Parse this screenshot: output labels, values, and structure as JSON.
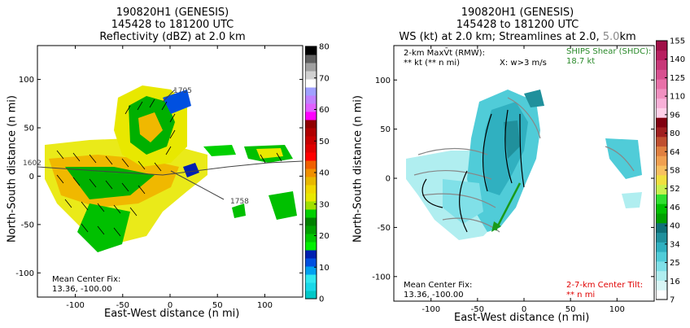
{
  "left": {
    "title_lines": [
      "190820H1 (GENESIS)",
      "145428 to 181200 UTC",
      "Reflectivity (dBZ) at 2.0 km"
    ],
    "xlabel": "East-West distance (n mi)",
    "ylabel": "North-South distance (n mi)",
    "mean_fix_label": "Mean Center Fix:",
    "mean_fix_value": "13.36, -100.00",
    "track_times": [
      "1602",
      "1758",
      "1705"
    ],
    "colorbar": {
      "ticks": [
        "80",
        "70",
        "60",
        "50",
        "40",
        "30",
        "20",
        "10",
        "0"
      ],
      "colors": [
        "#00c8c8",
        "#18d8e8",
        "#30e8f0",
        "#00a0f0",
        "#0050e0",
        "#0020b0",
        "#00f000",
        "#00c800",
        "#00a000",
        "#008000",
        "#00d000",
        "#a0e000",
        "#e8e800",
        "#f0d800",
        "#e8b800",
        "#f09000",
        "#f06000",
        "#ff0000",
        "#e00000",
        "#c80000",
        "#b00000",
        "#900000",
        "#ff00ff",
        "#e060ff",
        "#c080ff",
        "#a0a0ff",
        "#ffffff",
        "#d0d0d0",
        "#a0a0a0",
        "#606060",
        "#000000"
      ]
    },
    "chart_data": {
      "type": "heatmap",
      "field": "Reflectivity (dBZ) at 2.0 km",
      "xlabel": "East-West distance (n mi)",
      "ylabel": "North-South distance (n mi)",
      "xlim": [
        -140,
        140
      ],
      "ylim": [
        -125,
        135
      ],
      "xticks": [
        -100,
        -50,
        0,
        50,
        100
      ],
      "yticks": [
        -100,
        -50,
        0,
        50,
        100
      ],
      "colorbar_range": [
        0,
        80
      ],
      "colorbar_ticks": [
        0,
        10,
        20,
        30,
        40,
        50,
        60,
        70,
        80
      ],
      "track_labels": [
        "1602",
        "1705",
        "1758"
      ]
    }
  },
  "right": {
    "title_lines": [
      "190820H1 (GENESIS)",
      "145428 to 181200 UTC"
    ],
    "title3_a": "WS (kt) at 2.0 km; Streamlines at 2.0, ",
    "title3_b": "5.0",
    "title3_c": "km",
    "xlabel": "East-West distance (n mi)",
    "ylabel": "North-South distance (n mi)",
    "maxvt_label": "2-km MaxV̄t (RMW):",
    "maxvt_value": "** kt (** n mi)",
    "w_note": "X: w>3 m/s",
    "shear_label": "SHIPS Shear (SHDC):",
    "shear_value": "18.7 kt",
    "tilt_label": "2-7-km Center Tilt:",
    "tilt_value": "** n mi",
    "mean_fix_label": "Mean Center Fix:",
    "mean_fix_value": "13.36, -100.00",
    "colorbar": {
      "ticks": [
        "155",
        "140",
        "125",
        "110",
        "96",
        "80",
        "64",
        "58",
        "52",
        "46",
        "40",
        "34",
        "25",
        "16",
        "7"
      ],
      "colors": [
        "#ffffff",
        "#d8f6f6",
        "#b0eef0",
        "#80e0e8",
        "#50ccd8",
        "#30b0c0",
        "#20909c",
        "#107078",
        "#00a000",
        "#00c000",
        "#30e030",
        "#c8f050",
        "#f0e040",
        "#f8c060",
        "#f0a050",
        "#e08040",
        "#c05030",
        "#a02020",
        "#800010",
        "#ffd0e8",
        "#f8b0d8",
        "#f090c0",
        "#e870a8",
        "#d85090",
        "#c83878",
        "#b82060",
        "#a01048"
      ]
    },
    "chart_data": {
      "type": "heatmap",
      "field": "WS (kt) at 2.0 km",
      "xlabel": "East-West distance (n mi)",
      "ylabel": "North-South distance (n mi)",
      "xlim": [
        -140,
        140
      ],
      "ylim": [
        -125,
        135
      ],
      "xticks": [
        -100,
        -50,
        0,
        50,
        100
      ],
      "yticks": [
        -100,
        -50,
        0,
        50,
        100
      ],
      "colorbar_ticks": [
        7,
        16,
        25,
        34,
        40,
        46,
        52,
        58,
        64,
        80,
        96,
        110,
        125,
        140,
        155
      ],
      "ships_shear_kt": 18.7
    }
  },
  "colors": {
    "track": "#444444",
    "shear_arrow": "#1a9a1a",
    "shear_text": "#2a8a2a",
    "tilt_text": "#e00000"
  }
}
